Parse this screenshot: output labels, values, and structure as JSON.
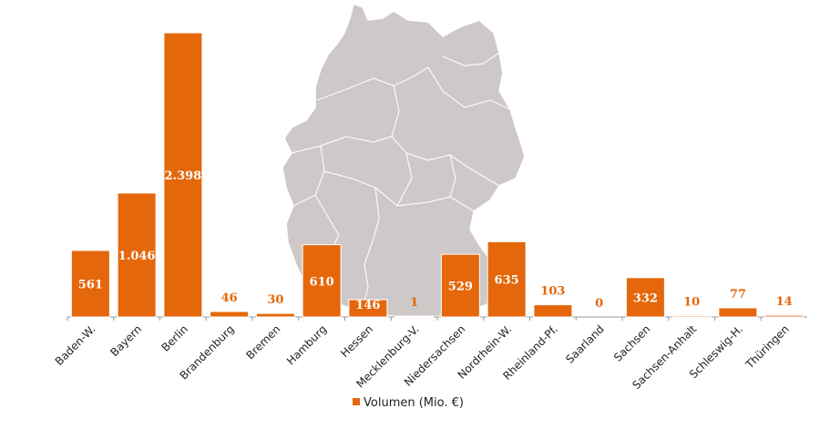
{
  "chart_data": {
    "type": "bar",
    "categories": [
      "Baden-W.",
      "Bayern",
      "Berlin",
      "Brandenburg",
      "Bremen",
      "Hamburg",
      "Hessen",
      "Mecklenburg-V.",
      "Niedersachsen",
      "Nordrhein-W.",
      "Rheinland-Pf.",
      "Saarland",
      "Sachsen",
      "Sachsen-Anhalt",
      "Schleswig-H.",
      "Thüringen"
    ],
    "values": [
      561,
      1046,
      2398,
      46,
      30,
      610,
      146,
      1,
      529,
      635,
      103,
      0,
      332,
      10,
      77,
      14
    ],
    "value_labels": [
      "561",
      "1.046",
      "2.398",
      "46",
      "30",
      "610",
      "146",
      "1",
      "529",
      "635",
      "103",
      "0",
      "332",
      "10",
      "77",
      "14"
    ],
    "series": [
      {
        "name": "Volumen (Mio. €)"
      }
    ],
    "ylim": [
      0,
      2500
    ],
    "title": "",
    "xlabel": "",
    "ylabel": "",
    "grid": false,
    "legend_position": "bottom-center",
    "background_image": "map of Germany",
    "colors": {
      "bar": "#e5670b",
      "bar_stroke": "#ffffff",
      "label_inside": "#ffffff",
      "label_outside": "#e5670b",
      "map_fill": "#cfc8c8",
      "map_border": "#ffffff",
      "axis": "#999999"
    }
  }
}
